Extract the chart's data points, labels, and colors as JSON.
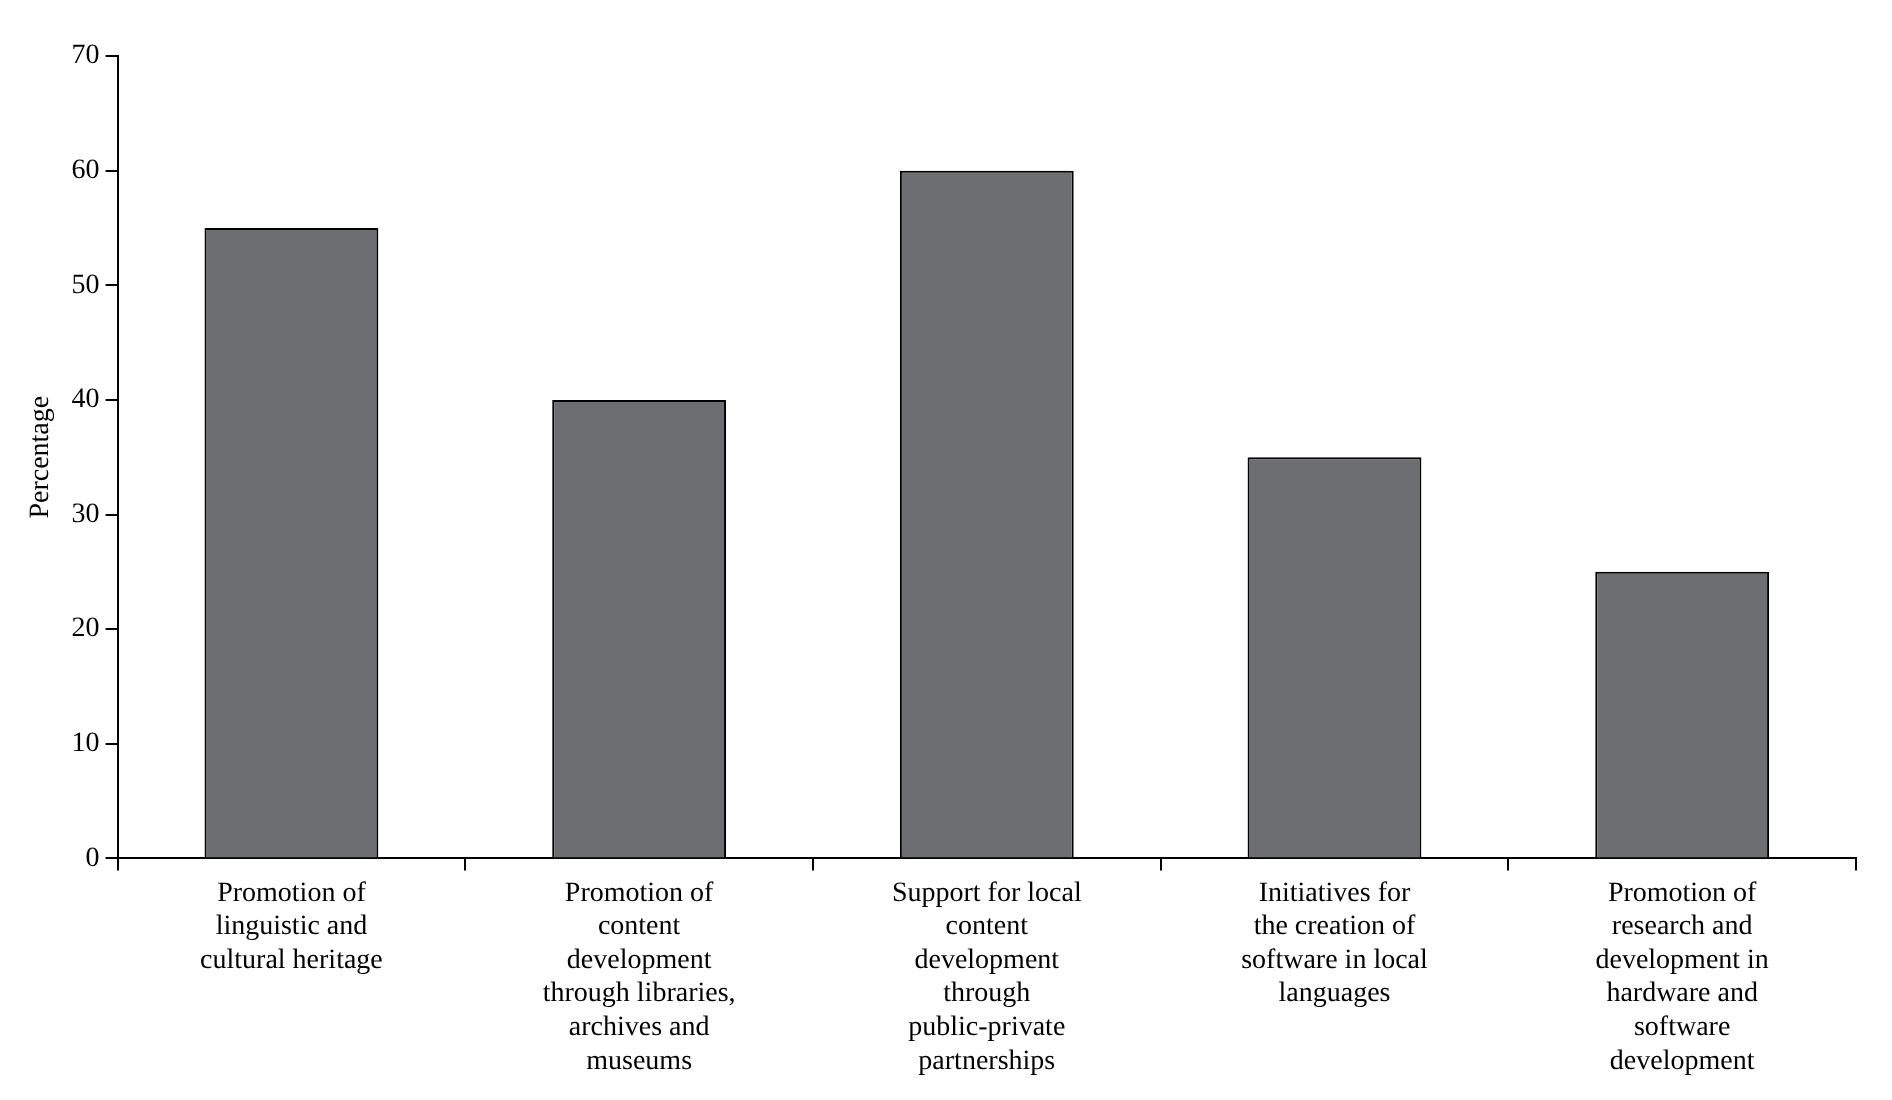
{
  "chart_data": {
    "type": "bar",
    "ylabel": "Percentage",
    "categories": [
      "Promotion of linguistic and cultural heritage",
      "Promotion of content development through libraries, archives and museums",
      "Support for local content development through public-private partnerships",
      "Initiatives for the creation of software in local languages",
      "Promotion of research and development in hardware and software development"
    ],
    "values": [
      55,
      40,
      60,
      35,
      25
    ],
    "color": "#6d6e71",
    "ylim": [
      0,
      70
    ],
    "yticks": [
      0,
      10,
      20,
      30,
      40,
      50,
      60,
      70
    ],
    "grid": false,
    "legend": false
  }
}
